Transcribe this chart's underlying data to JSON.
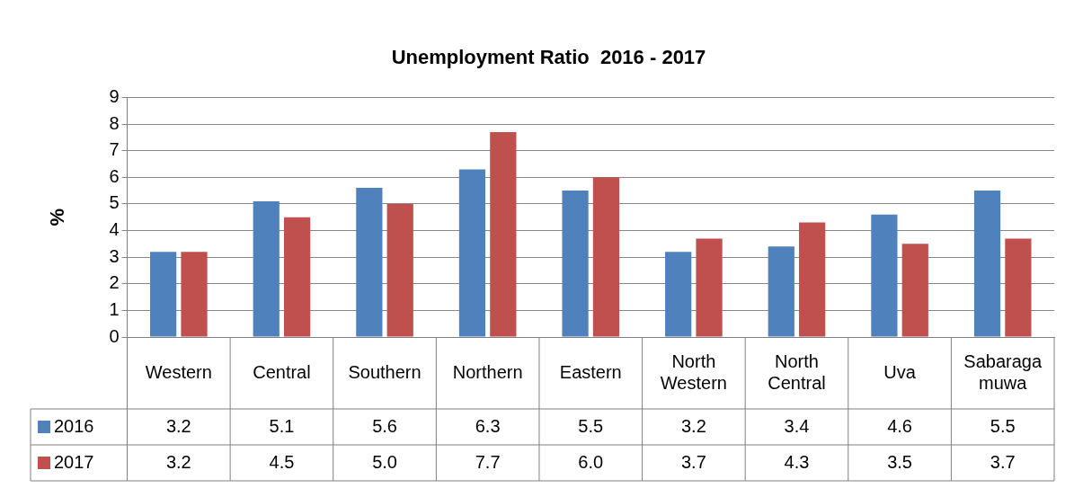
{
  "chart_data": {
    "type": "bar",
    "title": "Unemployment Ratio  2016 - 2017",
    "ylabel": "%",
    "categories": [
      "Western",
      "Central",
      "Southern",
      "Northern",
      "Eastern",
      "North Western",
      "North Central",
      "Uva",
      "Sabaragamuwa"
    ],
    "series": [
      {
        "name": "2016",
        "color": "#4f81bd",
        "values": [
          3.2,
          5.1,
          5.6,
          6.3,
          5.5,
          3.2,
          3.4,
          4.6,
          5.5
        ],
        "value_labels": [
          "3.2",
          "5.1",
          "5.6",
          "6.3",
          "5.5",
          "3.2",
          "3.4",
          "4.6",
          "5.5"
        ]
      },
      {
        "name": "2017",
        "color": "#c0504d",
        "values": [
          3.2,
          4.5,
          5.0,
          7.7,
          6.0,
          3.7,
          4.3,
          3.5,
          3.7
        ],
        "value_labels": [
          "3.2",
          "4.5",
          "5.0",
          "7.7",
          "6.0",
          "3.7",
          "4.3",
          "3.5",
          "3.7"
        ]
      }
    ],
    "ylim": [
      0,
      9
    ],
    "yticks": [
      0,
      1,
      2,
      3,
      4,
      5,
      6,
      7,
      8,
      9
    ],
    "grid": "y",
    "legend": "bottom left"
  }
}
